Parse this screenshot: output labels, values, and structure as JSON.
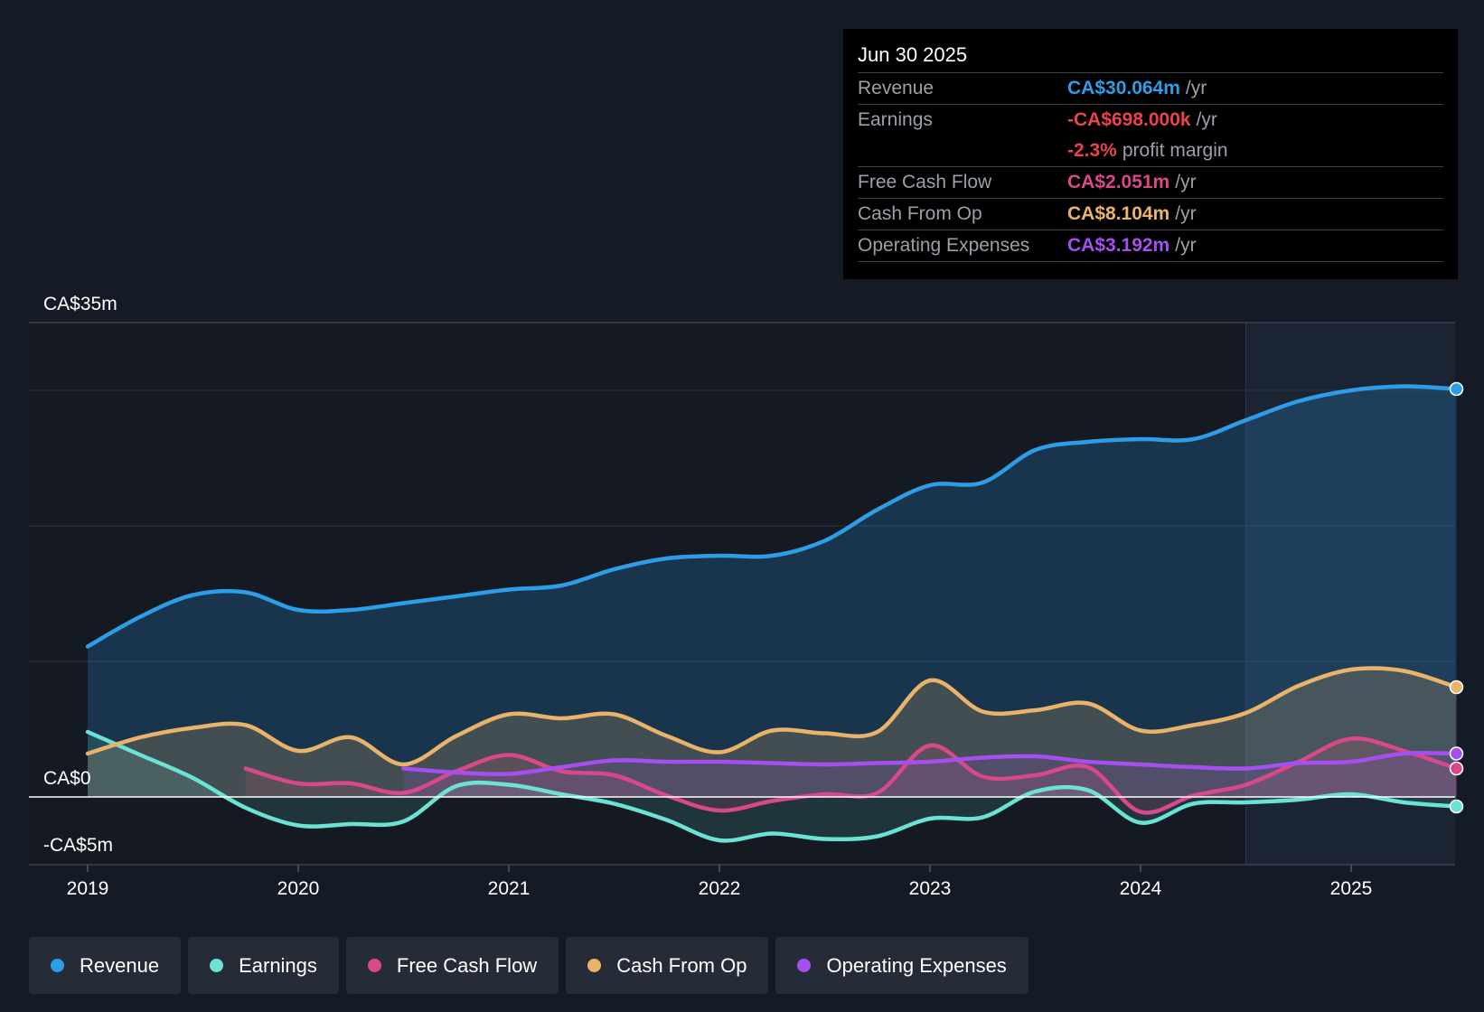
{
  "tooltip": {
    "date": "Jun 30 2025",
    "rows": [
      {
        "label": "Revenue",
        "value": "CA$30.064m",
        "unit": "/yr",
        "color": "#2d9de8"
      },
      {
        "label": "Earnings",
        "value": "-CA$698.000k",
        "unit": "/yr",
        "color": "#e8434d"
      },
      {
        "label": "",
        "value": "-2.3%",
        "unit": "profit margin",
        "color": "#e8434d"
      },
      {
        "label": "Free Cash Flow",
        "value": "CA$2.051m",
        "unit": "/yr",
        "color": "#d9488b"
      },
      {
        "label": "Cash From Op",
        "value": "CA$8.104m",
        "unit": "/yr",
        "color": "#e9b46a"
      },
      {
        "label": "Operating Expenses",
        "value": "CA$3.192m",
        "unit": "/yr",
        "color": "#a64ff0"
      }
    ]
  },
  "legend": [
    {
      "label": "Revenue",
      "color": "#2d9de8"
    },
    {
      "label": "Earnings",
      "color": "#6ae3d5"
    },
    {
      "label": "Free Cash Flow",
      "color": "#d9488b"
    },
    {
      "label": "Cash From Op",
      "color": "#e9b46a"
    },
    {
      "label": "Operating Expenses",
      "color": "#a64ff0"
    }
  ],
  "chart_data": {
    "type": "area",
    "title": "",
    "xlabel": "",
    "ylabel": "",
    "ylim": [
      -5,
      35
    ],
    "xlim": [
      2019,
      2025.5
    ],
    "forecast_start": 2024.5,
    "y_tick_labels": [
      {
        "value": 35,
        "label": "CA$35m"
      },
      {
        "value": 0,
        "label": "CA$0"
      },
      {
        "value": -5,
        "label": "-CA$5m"
      }
    ],
    "x_ticks": [
      {
        "value": 2019,
        "label": "2019"
      },
      {
        "value": 2020,
        "label": "2020"
      },
      {
        "value": 2021,
        "label": "2021"
      },
      {
        "value": 2022,
        "label": "2022"
      },
      {
        "value": 2023,
        "label": "2023"
      },
      {
        "value": 2024,
        "label": "2024"
      },
      {
        "value": 2025,
        "label": "2025"
      }
    ],
    "series": [
      {
        "name": "Revenue",
        "color": "#2d9de8",
        "points": [
          [
            2019.0,
            11.1
          ],
          [
            2019.25,
            13.3
          ],
          [
            2019.5,
            14.9
          ],
          [
            2019.75,
            15.1
          ],
          [
            2020.0,
            13.8
          ],
          [
            2020.25,
            13.8
          ],
          [
            2020.5,
            14.3
          ],
          [
            2020.75,
            14.8
          ],
          [
            2021.0,
            15.3
          ],
          [
            2021.25,
            15.6
          ],
          [
            2021.5,
            16.8
          ],
          [
            2021.75,
            17.6
          ],
          [
            2022.0,
            17.8
          ],
          [
            2022.25,
            17.8
          ],
          [
            2022.5,
            18.9
          ],
          [
            2022.75,
            21.2
          ],
          [
            2023.0,
            23.0
          ],
          [
            2023.25,
            23.2
          ],
          [
            2023.5,
            25.6
          ],
          [
            2023.75,
            26.2
          ],
          [
            2024.0,
            26.4
          ],
          [
            2024.25,
            26.4
          ],
          [
            2024.5,
            27.8
          ],
          [
            2024.75,
            29.2
          ],
          [
            2025.0,
            30.0
          ],
          [
            2025.25,
            30.3
          ],
          [
            2025.5,
            30.1
          ]
        ]
      },
      {
        "name": "Earnings",
        "color": "#6ae3d5",
        "points": [
          [
            2019.0,
            4.8
          ],
          [
            2019.25,
            3.1
          ],
          [
            2019.5,
            1.4
          ],
          [
            2019.75,
            -0.8
          ],
          [
            2020.0,
            -2.1
          ],
          [
            2020.25,
            -2.0
          ],
          [
            2020.5,
            -1.8
          ],
          [
            2020.75,
            0.8
          ],
          [
            2021.0,
            0.9
          ],
          [
            2021.25,
            0.2
          ],
          [
            2021.5,
            -0.5
          ],
          [
            2021.75,
            -1.7
          ],
          [
            2022.0,
            -3.2
          ],
          [
            2022.25,
            -2.7
          ],
          [
            2022.5,
            -3.1
          ],
          [
            2022.75,
            -2.9
          ],
          [
            2023.0,
            -1.6
          ],
          [
            2023.25,
            -1.5
          ],
          [
            2023.5,
            0.4
          ],
          [
            2023.75,
            0.5
          ],
          [
            2024.0,
            -1.9
          ],
          [
            2024.25,
            -0.5
          ],
          [
            2024.5,
            -0.4
          ],
          [
            2024.75,
            -0.2
          ],
          [
            2025.0,
            0.2
          ],
          [
            2025.25,
            -0.4
          ],
          [
            2025.5,
            -0.7
          ]
        ]
      },
      {
        "name": "Free Cash Flow",
        "color": "#d9488b",
        "points": [
          [
            2019.75,
            2.1
          ],
          [
            2020.0,
            1.0
          ],
          [
            2020.25,
            1.0
          ],
          [
            2020.5,
            0.3
          ],
          [
            2020.75,
            1.9
          ],
          [
            2021.0,
            3.1
          ],
          [
            2021.25,
            1.9
          ],
          [
            2021.5,
            1.6
          ],
          [
            2021.75,
            0.1
          ],
          [
            2022.0,
            -1.0
          ],
          [
            2022.25,
            -0.3
          ],
          [
            2022.5,
            0.2
          ],
          [
            2022.75,
            0.3
          ],
          [
            2023.0,
            3.8
          ],
          [
            2023.25,
            1.5
          ],
          [
            2023.5,
            1.6
          ],
          [
            2023.75,
            2.2
          ],
          [
            2024.0,
            -1.1
          ],
          [
            2024.25,
            0.1
          ],
          [
            2024.5,
            0.9
          ],
          [
            2024.75,
            2.6
          ],
          [
            2025.0,
            4.3
          ],
          [
            2025.25,
            3.4
          ],
          [
            2025.5,
            2.1
          ]
        ]
      },
      {
        "name": "Cash From Op",
        "color": "#e9b46a",
        "points": [
          [
            2019.0,
            3.2
          ],
          [
            2019.25,
            4.4
          ],
          [
            2019.5,
            5.1
          ],
          [
            2019.75,
            5.3
          ],
          [
            2020.0,
            3.4
          ],
          [
            2020.25,
            4.4
          ],
          [
            2020.5,
            2.4
          ],
          [
            2020.75,
            4.5
          ],
          [
            2021.0,
            6.1
          ],
          [
            2021.25,
            5.8
          ],
          [
            2021.5,
            6.1
          ],
          [
            2021.75,
            4.5
          ],
          [
            2022.0,
            3.3
          ],
          [
            2022.25,
            4.9
          ],
          [
            2022.5,
            4.7
          ],
          [
            2022.75,
            4.8
          ],
          [
            2023.0,
            8.6
          ],
          [
            2023.25,
            6.3
          ],
          [
            2023.5,
            6.4
          ],
          [
            2023.75,
            6.9
          ],
          [
            2024.0,
            4.9
          ],
          [
            2024.25,
            5.3
          ],
          [
            2024.5,
            6.2
          ],
          [
            2024.75,
            8.2
          ],
          [
            2025.0,
            9.4
          ],
          [
            2025.25,
            9.3
          ],
          [
            2025.5,
            8.1
          ]
        ]
      },
      {
        "name": "Operating Expenses",
        "color": "#a64ff0",
        "points": [
          [
            2020.5,
            2.1
          ],
          [
            2020.75,
            1.8
          ],
          [
            2021.0,
            1.7
          ],
          [
            2021.25,
            2.2
          ],
          [
            2021.5,
            2.7
          ],
          [
            2021.75,
            2.6
          ],
          [
            2022.0,
            2.6
          ],
          [
            2022.25,
            2.5
          ],
          [
            2022.5,
            2.4
          ],
          [
            2022.75,
            2.5
          ],
          [
            2023.0,
            2.6
          ],
          [
            2023.25,
            2.9
          ],
          [
            2023.5,
            3.0
          ],
          [
            2023.75,
            2.6
          ],
          [
            2024.0,
            2.4
          ],
          [
            2024.25,
            2.2
          ],
          [
            2024.5,
            2.1
          ],
          [
            2024.75,
            2.5
          ],
          [
            2025.0,
            2.6
          ],
          [
            2025.25,
            3.2
          ],
          [
            2025.5,
            3.2
          ]
        ]
      }
    ]
  }
}
